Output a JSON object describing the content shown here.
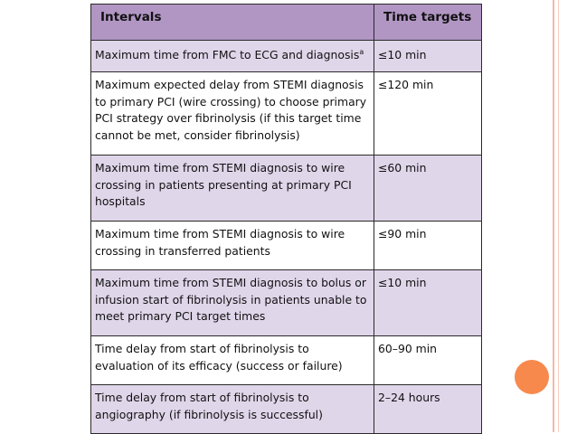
{
  "table": {
    "headers": [
      "Intervals",
      "Time targets"
    ],
    "rows": [
      {
        "interval": "Maximum time from FMC to ECG and diagnosis",
        "footnote": "a",
        "target": "≤10 min"
      },
      {
        "interval": "Maximum expected delay from STEMI diagnosis to primary PCI (wire crossing) to choose primary PCI strategy over fibrinolysis (if this target time cannot be met, consider fibrinolysis)",
        "target": "≤120 min"
      },
      {
        "interval": "Maximum time from STEMI diagnosis to wire crossing in patients presenting at primary PCI hospitals",
        "target": "≤60 min"
      },
      {
        "interval": "Maximum time from STEMI diagnosis to wire crossing in transferred patients",
        "target": "≤90 min"
      },
      {
        "interval": "Maximum time from STEMI diagnosis to bolus or infusion start of fibrinolysis in patients unable to meet primary PCI target times",
        "target": "≤10 min"
      },
      {
        "interval": "Time delay from start of fibrinolysis to evaluation of its efficacy (success or failure)",
        "target": "60–90 min"
      },
      {
        "interval": "Time delay from start of fibrinolysis to angiography (if fibrinolysis is successful)",
        "target": "2–24 hours"
      }
    ]
  },
  "colors": {
    "header_bg": "#b196c4",
    "row_shade": "#e0d6ea",
    "accent_circle": "#f7894d",
    "side_rule": "#f2b9a8"
  }
}
